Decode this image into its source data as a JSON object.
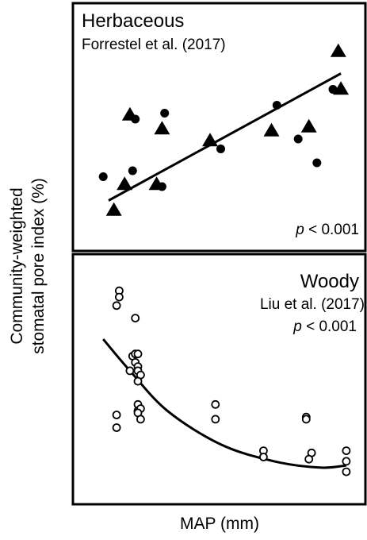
{
  "figure": {
    "ylabel_line1": "Community-weighted",
    "ylabel_line2": "stomatal pore index (%)",
    "xlabel": "MAP (mm)"
  },
  "chart_data": [
    {
      "type": "scatter",
      "title": "Herbaceous",
      "subtitle": "Forrestel et al. (2017)",
      "p_symbol": "p",
      "p_text": " < 0.001",
      "xlabel": "MAP (mm)",
      "ylabel": "Community-weighted stomatal pore index (%)",
      "xlim": [
        0,
        100
      ],
      "ylim": [
        0,
        100
      ],
      "fit": {
        "kind": "linear",
        "points": [
          [
            8,
            15
          ],
          [
            95,
            79
          ]
        ]
      },
      "series": [
        {
          "marker": "circle-filled",
          "points": [
            [
              6,
              27
            ],
            [
              17,
              30
            ],
            [
              18,
              56
            ],
            [
              29,
              59
            ],
            [
              28,
              22
            ],
            [
              50,
              41
            ],
            [
              71,
              63
            ],
            [
              79,
              46
            ],
            [
              86,
              34
            ],
            [
              92,
              71
            ]
          ]
        },
        {
          "marker": "triangle-filled",
          "points": [
            [
              10,
              10
            ],
            [
              14,
              23
            ],
            [
              16,
              58
            ],
            [
              26,
              23
            ],
            [
              28,
              51
            ],
            [
              46,
              45
            ],
            [
              69,
              50
            ],
            [
              83,
              52
            ],
            [
              94,
              90
            ],
            [
              95,
              71
            ]
          ]
        }
      ]
    },
    {
      "type": "scatter",
      "title": "Woody",
      "subtitle": "Liu et al. (2017)",
      "p_symbol": "p",
      "p_text": " < 0.001",
      "xlabel": "MAP (mm)",
      "ylabel": "Community-weighted stomatal pore index (%)",
      "xlim": [
        0,
        100
      ],
      "ylim": [
        0,
        100
      ],
      "fit": {
        "kind": "smooth",
        "points": [
          [
            6,
            69
          ],
          [
            16,
            54
          ],
          [
            30,
            35
          ],
          [
            50,
            19
          ],
          [
            70,
            11
          ],
          [
            87,
            8
          ],
          [
            97,
            9
          ]
        ]
      },
      "series": [
        {
          "marker": "circle-open",
          "points": [
            [
              12,
              92
            ],
            [
              12,
              89
            ],
            [
              11,
              85
            ],
            [
              18,
              79
            ],
            [
              17,
              61
            ],
            [
              18,
              62
            ],
            [
              19,
              62
            ],
            [
              18,
              58
            ],
            [
              19,
              56
            ],
            [
              19,
              54
            ],
            [
              20,
              52
            ],
            [
              16,
              54
            ],
            [
              19,
              49
            ],
            [
              19,
              38
            ],
            [
              19,
              35
            ],
            [
              20,
              36
            ],
            [
              19,
              34
            ],
            [
              20,
              31
            ],
            [
              11,
              33
            ],
            [
              11,
              27
            ],
            [
              48,
              38
            ],
            [
              48,
              31
            ],
            [
              66,
              16
            ],
            [
              66,
              13
            ],
            [
              82,
              32
            ],
            [
              82,
              31
            ],
            [
              84,
              15
            ],
            [
              83,
              12
            ],
            [
              97,
              16
            ],
            [
              97,
              11
            ],
            [
              97,
              6
            ]
          ]
        }
      ]
    }
  ]
}
